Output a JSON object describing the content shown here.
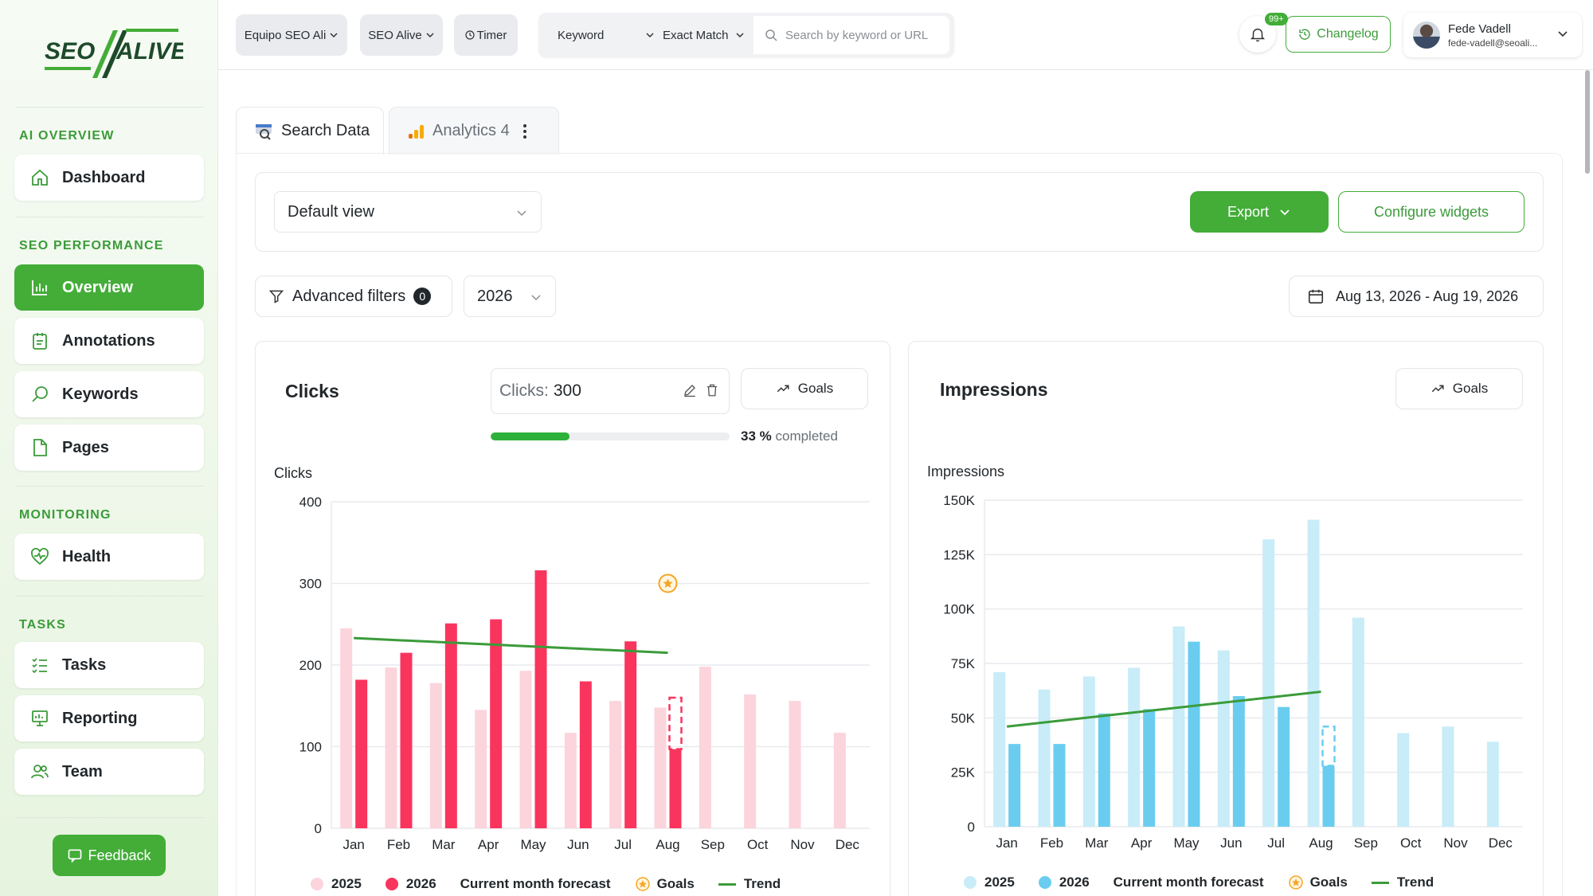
{
  "brand": {
    "logo_left": "SEO",
    "logo_right": "ALIVE",
    "accent": "#43ad38"
  },
  "sidebar": {
    "sections": [
      {
        "label": "AI OVERVIEW"
      },
      {
        "label": "SEO PERFORMANCE"
      },
      {
        "label": "MONITORING"
      },
      {
        "label": "TASKS"
      }
    ],
    "items": [
      {
        "label": "Dashboard",
        "icon": "home-icon"
      },
      {
        "label": "Overview",
        "icon": "bar-chart-icon",
        "active": true
      },
      {
        "label": "Annotations",
        "icon": "clipboard-icon"
      },
      {
        "label": "Keywords",
        "icon": "search-icon"
      },
      {
        "label": "Pages",
        "icon": "file-icon"
      },
      {
        "label": "Health",
        "icon": "heart-pulse-icon"
      },
      {
        "label": "Tasks",
        "icon": "checklist-icon"
      },
      {
        "label": "Reporting",
        "icon": "presentation-icon"
      },
      {
        "label": "Team",
        "icon": "users-icon"
      }
    ],
    "feedback_label": "Feedback"
  },
  "topbar": {
    "team_select": "Equipo SEO Ali",
    "project_select": "SEO Alive",
    "timer_label": "Timer",
    "search_type": "Keyword",
    "match_type": "Exact Match",
    "search_placeholder": "Search by keyword or URL",
    "notifications_badge": "99+",
    "changelog_label": "Changelog",
    "user_name": "Fede Vadell",
    "user_email": "fede-vadell@seoali..."
  },
  "tabs": [
    {
      "label": "Search Data",
      "active": true
    },
    {
      "label": "Analytics 4",
      "active": false
    }
  ],
  "toolbar": {
    "view_select": "Default view",
    "export_label": "Export",
    "configure_label": "Configure widgets",
    "advanced_filters_label": "Advanced filters",
    "advanced_filters_count": "0",
    "year_select": "2026",
    "date_range": "Aug 13, 2026 - Aug 19, 2026"
  },
  "clicks_widget": {
    "title": "Clicks",
    "goal_field_label": "Clicks:",
    "goal_field_value": "300",
    "goals_label": "Goals",
    "progress_fraction": 0.33,
    "progress_value": "33 %",
    "progress_suffix": "completed"
  },
  "impressions_widget": {
    "title": "Impressions",
    "goals_label": "Goals"
  },
  "legend": {
    "series_2025": "2025",
    "series_2026": "2026",
    "forecast": "Current month forecast",
    "goals": "Goals",
    "trend": "Trend"
  },
  "chart_data": [
    {
      "type": "bar",
      "ylabel": "Clicks",
      "ylim": [
        0,
        400
      ],
      "yticks": [
        "0",
        "100",
        "200",
        "300",
        "400"
      ],
      "categories": [
        "Jan",
        "Feb",
        "Mar",
        "Apr",
        "May",
        "Jun",
        "Jul",
        "Aug",
        "Sep",
        "Oct",
        "Nov",
        "Dec"
      ],
      "series": [
        {
          "name": "2025",
          "color": "#fcd4dc",
          "values": [
            245,
            197,
            178,
            145,
            193,
            117,
            156,
            148,
            198,
            164,
            156,
            117
          ]
        },
        {
          "name": "2026",
          "color": "#f9355e",
          "values": [
            182,
            215,
            251,
            256,
            316,
            180,
            229,
            97,
            null,
            null,
            null,
            null
          ]
        }
      ],
      "forecast": {
        "category": "Aug",
        "value": 160
      },
      "goal": {
        "category": "Aug",
        "value": 300
      },
      "trend": {
        "from_category": "Jan",
        "to_category": "Aug",
        "from_value": 233,
        "to_value": 215
      },
      "legend": "bottom"
    },
    {
      "type": "bar",
      "ylabel": "Impressions",
      "ylim": [
        0,
        150000
      ],
      "yticks": [
        "0",
        "25K",
        "50K",
        "75K",
        "100K",
        "125K",
        "150K"
      ],
      "categories": [
        "Jan",
        "Feb",
        "Mar",
        "Apr",
        "May",
        "Jun",
        "Jul",
        "Aug",
        "Sep",
        "Oct",
        "Nov",
        "Dec"
      ],
      "series": [
        {
          "name": "2025",
          "color": "#c8ecf8",
          "values": [
            71000,
            63000,
            69000,
            73000,
            92000,
            81000,
            132000,
            141000,
            96000,
            43000,
            46000,
            39000
          ]
        },
        {
          "name": "2026",
          "color": "#6acdef",
          "values": [
            38000,
            38000,
            52000,
            54000,
            85000,
            60000,
            55000,
            28000,
            null,
            null,
            null,
            null
          ]
        }
      ],
      "forecast": {
        "category": "Aug",
        "value": 46000
      },
      "trend": {
        "from_category": "Jan",
        "to_category": "Aug",
        "from_value": 46000,
        "to_value": 62000
      },
      "legend": "bottom"
    }
  ]
}
